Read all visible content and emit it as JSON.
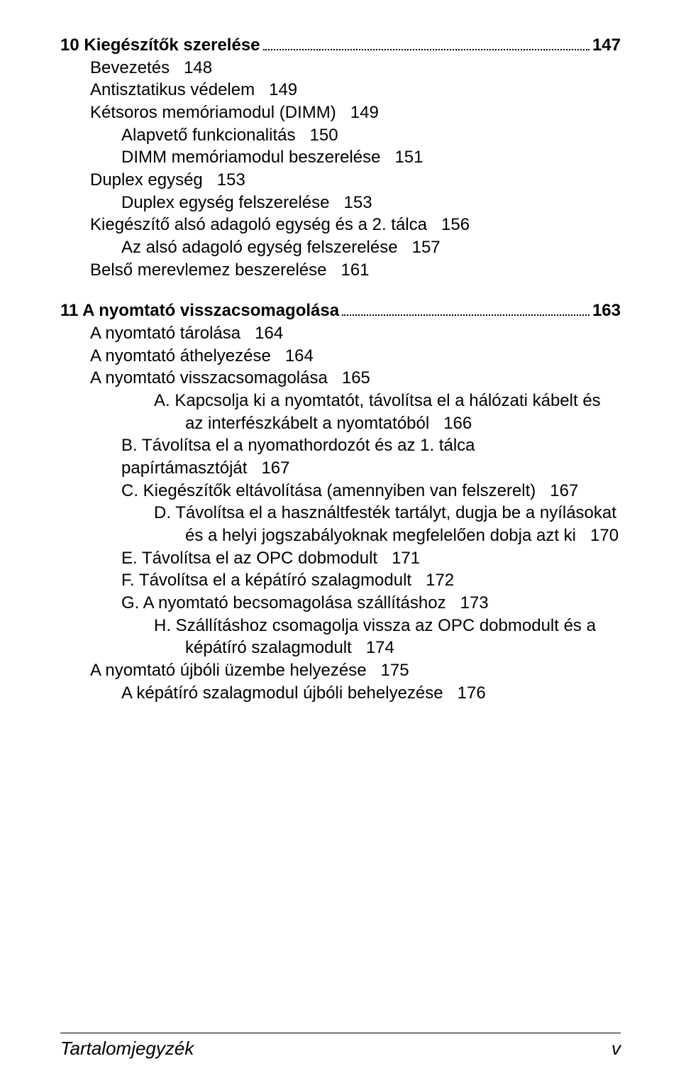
{
  "toc": {
    "sec10": {
      "num": "10",
      "title": "Kiegészítők szerelése",
      "page": "147",
      "items": [
        {
          "t": "Bevezetés",
          "p": "148",
          "lvl": 2
        },
        {
          "t": "Antisztatikus védelem",
          "p": "149",
          "lvl": 2
        },
        {
          "t": "Kétsoros memóriamodul (DIMM)",
          "p": "149",
          "lvl": 2
        },
        {
          "t": "Alapvető funkcionalitás",
          "p": "150",
          "lvl": 3
        },
        {
          "t": "DIMM memóriamodul beszerelése",
          "p": "151",
          "lvl": 3
        },
        {
          "t": "Duplex egység",
          "p": "153",
          "lvl": 2
        },
        {
          "t": "Duplex egység felszerelése",
          "p": "153",
          "lvl": 3
        },
        {
          "t": "Kiegészítő alsó adagoló egység és a 2. tálca",
          "p": "156",
          "lvl": 2
        },
        {
          "t": "Az alsó adagoló egység felszerelése",
          "p": "157",
          "lvl": 3
        },
        {
          "t": "Belső merevlemez beszerelése",
          "p": "161",
          "lvl": 2
        }
      ]
    },
    "sec11": {
      "num": "11",
      "title": "A nyomtató visszacsomagolása",
      "page": "163",
      "items": [
        {
          "t": "A nyomtató tárolása",
          "p": "164",
          "lvl": 2
        },
        {
          "t": "A nyomtató áthelyezése",
          "p": "164",
          "lvl": 2
        },
        {
          "t": "A nyomtató visszacsomagolása",
          "p": "165",
          "lvl": 2
        },
        {
          "t": "A. Kapcsolja ki a nyomtatót, távolítsa el a hálózati kábelt és az interfészkábelt a nyomtatóból",
          "p": "166",
          "lvl": 3,
          "wrap": 4
        },
        {
          "t": "B. Távolítsa el a nyomathordozót és az 1. tálca papírtámasztóját",
          "p": "167",
          "lvl": 3
        },
        {
          "t": "C. Kiegészítők eltávolítása (amennyiben van felszerelt)",
          "p": "167",
          "lvl": 3
        },
        {
          "t": "D. Távolítsa el a használtfesték tartályt, dugja be a nyílásokat és a helyi jogszabályoknak megfelelően dobja azt ki",
          "p": "170",
          "lvl": 3,
          "wrap": 4
        },
        {
          "t": "E. Távolítsa el az OPC dobmodult",
          "p": "171",
          "lvl": 3
        },
        {
          "t": "F. Távolítsa el a képátíró szalagmodult",
          "p": "172",
          "lvl": 3
        },
        {
          "t": "G. A nyomtató becsomagolása szállításhoz",
          "p": "173",
          "lvl": 3
        },
        {
          "t": "H. Szállításhoz csomagolja vissza az OPC dobmodult és a képátíró szalagmodult",
          "p": "174",
          "lvl": 3,
          "wrap": 4
        },
        {
          "t": "A nyomtató újbóli üzembe helyezése",
          "p": "175",
          "lvl": 2
        },
        {
          "t": "A képátíró szalagmodul újbóli behelyezése",
          "p": "176",
          "lvl": 3
        }
      ]
    }
  },
  "footer": {
    "left": "Tartalomjegyzék",
    "right": "v"
  }
}
